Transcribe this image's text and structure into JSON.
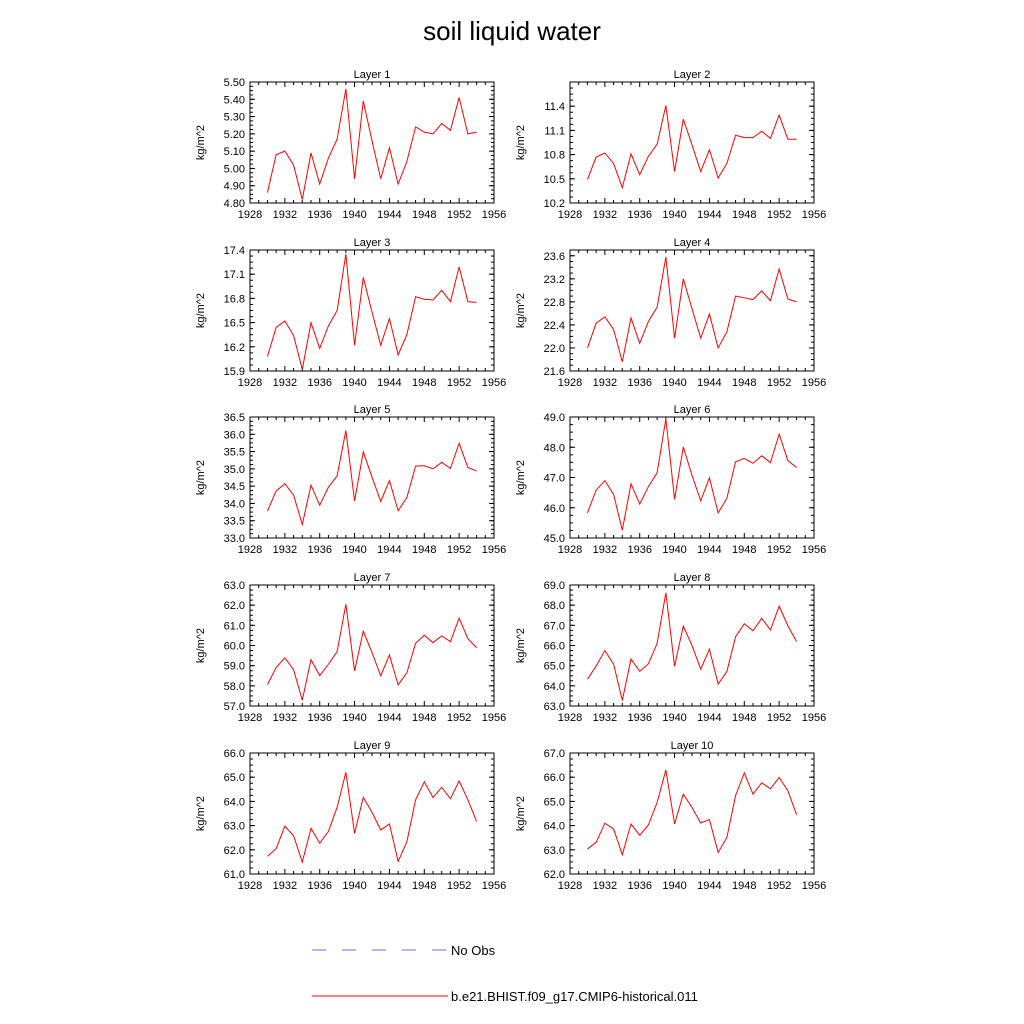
{
  "title": "soil liquid water",
  "colors": {
    "model": "#ff0000",
    "obs": "#6a6aff",
    "axis": "#000000"
  },
  "legend": {
    "obs_label": "No Obs",
    "model_label": "b.e21.BHIST.f09_g17.CMIP6-historical.011"
  },
  "chart_data": [
    {
      "type": "line",
      "title": "Layer 1",
      "ylabel": "kg/m^2",
      "xlim": [
        1928,
        1956
      ],
      "ylim": [
        4.8,
        5.5
      ],
      "xticks": [
        "1928",
        "1932",
        "1936",
        "1940",
        "1944",
        "1948",
        "1952",
        "1956"
      ],
      "yticks": [
        "4.80",
        "4.90",
        "5.00",
        "5.10",
        "5.20",
        "5.30",
        "5.40",
        "5.50"
      ],
      "x": [
        1930,
        1931,
        1932,
        1933,
        1934,
        1935,
        1936,
        1937,
        1938,
        1939,
        1940,
        1941,
        1942,
        1943,
        1944,
        1945,
        1946,
        1947,
        1948,
        1949,
        1950,
        1951,
        1952,
        1953,
        1954
      ],
      "series": [
        {
          "name": "b.e21.BHIST.f09_g17.CMIP6-historical.011",
          "values": [
            4.86,
            5.08,
            5.1,
            5.02,
            4.82,
            5.09,
            4.91,
            5.06,
            5.17,
            5.46,
            4.94,
            5.39,
            5.16,
            4.94,
            5.12,
            4.91,
            5.04,
            5.24,
            5.21,
            5.2,
            5.26,
            5.22,
            5.41,
            5.2,
            5.21
          ]
        }
      ]
    },
    {
      "type": "line",
      "title": "Layer 2",
      "ylabel": "kg/m^2",
      "xlim": [
        1928,
        1956
      ],
      "ylim": [
        10.2,
        11.7
      ],
      "xticks": [
        "1928",
        "1932",
        "1936",
        "1940",
        "1944",
        "1948",
        "1952",
        "1956"
      ],
      "yticks": [
        "10.2",
        "10.5",
        "10.8",
        "11.1",
        "11.4"
      ],
      "x": [
        1930,
        1931,
        1932,
        1933,
        1934,
        1935,
        1936,
        1937,
        1938,
        1939,
        1940,
        1941,
        1942,
        1943,
        1944,
        1945,
        1946,
        1947,
        1948,
        1949,
        1950,
        1951,
        1952,
        1953,
        1954
      ],
      "series": [
        {
          "name": "b.e21.BHIST.f09_g17.CMIP6-historical.011",
          "values": [
            10.49,
            10.77,
            10.82,
            10.69,
            10.39,
            10.81,
            10.55,
            10.78,
            10.93,
            11.41,
            10.59,
            11.24,
            10.92,
            10.59,
            10.86,
            10.51,
            10.69,
            11.04,
            11.01,
            11.01,
            11.09,
            11.0,
            11.29,
            10.99,
            10.99
          ]
        }
      ]
    },
    {
      "type": "line",
      "title": "Layer 3",
      "ylabel": "kg/m^2",
      "xlim": [
        1928,
        1956
      ],
      "ylim": [
        15.9,
        17.4
      ],
      "xticks": [
        "1928",
        "1932",
        "1936",
        "1940",
        "1944",
        "1948",
        "1952",
        "1956"
      ],
      "yticks": [
        "15.9",
        "16.2",
        "16.5",
        "16.8",
        "17.1",
        "17.4"
      ],
      "x": [
        1930,
        1931,
        1932,
        1933,
        1934,
        1935,
        1936,
        1937,
        1938,
        1939,
        1940,
        1941,
        1942,
        1943,
        1944,
        1945,
        1946,
        1947,
        1948,
        1949,
        1950,
        1951,
        1952,
        1953,
        1954
      ],
      "series": [
        {
          "name": "b.e21.BHIST.f09_g17.CMIP6-historical.011",
          "values": [
            16.08,
            16.44,
            16.52,
            16.34,
            15.92,
            16.5,
            16.18,
            16.46,
            16.65,
            17.35,
            16.22,
            17.06,
            16.63,
            16.22,
            16.55,
            16.1,
            16.35,
            16.82,
            16.79,
            16.78,
            16.9,
            16.76,
            17.19,
            16.76,
            16.75
          ]
        }
      ]
    },
    {
      "type": "line",
      "title": "Layer 4",
      "ylabel": "kg/m^2",
      "xlim": [
        1928,
        1956
      ],
      "ylim": [
        21.6,
        23.7
      ],
      "xticks": [
        "1928",
        "1932",
        "1936",
        "1940",
        "1944",
        "1948",
        "1952",
        "1956"
      ],
      "yticks": [
        "21.6",
        "22.0",
        "22.4",
        "22.8",
        "23.2",
        "23.6"
      ],
      "x": [
        1930,
        1931,
        1932,
        1933,
        1934,
        1935,
        1936,
        1937,
        1938,
        1939,
        1940,
        1941,
        1942,
        1943,
        1944,
        1945,
        1946,
        1947,
        1948,
        1949,
        1950,
        1951,
        1952,
        1953,
        1954
      ],
      "series": [
        {
          "name": "b.e21.BHIST.f09_g17.CMIP6-historical.011",
          "values": [
            22.0,
            22.43,
            22.54,
            22.32,
            21.76,
            22.52,
            22.08,
            22.46,
            22.71,
            23.58,
            22.17,
            23.2,
            22.68,
            22.17,
            22.59,
            22.0,
            22.28,
            22.9,
            22.87,
            22.84,
            22.99,
            22.82,
            23.37,
            22.85,
            22.8
          ]
        }
      ]
    },
    {
      "type": "line",
      "title": "Layer 5",
      "ylabel": "kg/m^2",
      "xlim": [
        1928,
        1956
      ],
      "ylim": [
        33.0,
        36.5
      ],
      "xticks": [
        "1928",
        "1932",
        "1936",
        "1940",
        "1944",
        "1948",
        "1952",
        "1956"
      ],
      "yticks": [
        "33.0",
        "33.5",
        "34.0",
        "34.5",
        "35.0",
        "35.5",
        "36.0",
        "36.5"
      ],
      "x": [
        1930,
        1931,
        1932,
        1933,
        1934,
        1935,
        1936,
        1937,
        1938,
        1939,
        1940,
        1941,
        1942,
        1943,
        1944,
        1945,
        1946,
        1947,
        1948,
        1949,
        1950,
        1951,
        1952,
        1953,
        1954
      ],
      "series": [
        {
          "name": "b.e21.BHIST.f09_g17.CMIP6-historical.011",
          "values": [
            33.78,
            34.36,
            34.57,
            34.24,
            33.39,
            34.53,
            33.95,
            34.47,
            34.8,
            36.11,
            34.07,
            35.49,
            34.76,
            34.06,
            34.66,
            33.79,
            34.17,
            35.08,
            35.09,
            35.0,
            35.19,
            35.01,
            35.74,
            35.04,
            34.94
          ]
        }
      ]
    },
    {
      "type": "line",
      "title": "Layer 6",
      "ylabel": "kg/m^2",
      "xlim": [
        1928,
        1956
      ],
      "ylim": [
        45.0,
        49.0
      ],
      "xticks": [
        "1928",
        "1932",
        "1936",
        "1940",
        "1944",
        "1948",
        "1952",
        "1956"
      ],
      "yticks": [
        "45.0",
        "46.0",
        "47.0",
        "48.0",
        "49.0"
      ],
      "x": [
        1930,
        1931,
        1932,
        1933,
        1934,
        1935,
        1936,
        1937,
        1938,
        1939,
        1940,
        1941,
        1942,
        1943,
        1944,
        1945,
        1946,
        1947,
        1948,
        1949,
        1950,
        1951,
        1952,
        1953,
        1954
      ],
      "series": [
        {
          "name": "b.e21.BHIST.f09_g17.CMIP6-historical.011",
          "values": [
            45.83,
            46.58,
            46.9,
            46.44,
            45.26,
            46.79,
            46.12,
            46.7,
            47.16,
            48.94,
            46.28,
            48.01,
            47.07,
            46.23,
            46.99,
            45.83,
            46.31,
            47.52,
            47.63,
            47.47,
            47.72,
            47.49,
            48.43,
            47.56,
            47.33
          ]
        }
      ]
    },
    {
      "type": "line",
      "title": "Layer 7",
      "ylabel": "kg/m^2",
      "xlim": [
        1928,
        1956
      ],
      "ylim": [
        57.0,
        63.0
      ],
      "xticks": [
        "1928",
        "1932",
        "1936",
        "1940",
        "1944",
        "1948",
        "1952",
        "1956"
      ],
      "yticks": [
        "57.0",
        "58.0",
        "59.0",
        "60.0",
        "61.0",
        "62.0",
        "63.0"
      ],
      "x": [
        1930,
        1931,
        1932,
        1933,
        1934,
        1935,
        1936,
        1937,
        1938,
        1939,
        1940,
        1941,
        1942,
        1943,
        1944,
        1945,
        1946,
        1947,
        1948,
        1949,
        1950,
        1951,
        1952,
        1953,
        1954
      ],
      "series": [
        {
          "name": "b.e21.BHIST.f09_g17.CMIP6-historical.011",
          "values": [
            58.06,
            58.91,
            59.39,
            58.8,
            57.29,
            59.3,
            58.51,
            59.07,
            59.7,
            62.04,
            58.74,
            60.71,
            59.65,
            58.5,
            59.53,
            58.05,
            58.65,
            60.11,
            60.51,
            60.14,
            60.48,
            60.19,
            61.36,
            60.34,
            59.89
          ]
        }
      ]
    },
    {
      "type": "line",
      "title": "Layer 8",
      "ylabel": "kg/m^2",
      "xlim": [
        1928,
        1956
      ],
      "ylim": [
        63.0,
        69.0
      ],
      "xticks": [
        "1928",
        "1932",
        "1936",
        "1940",
        "1944",
        "1948",
        "1952",
        "1956"
      ],
      "yticks": [
        "63.0",
        "64.0",
        "65.0",
        "66.0",
        "67.0",
        "68.0",
        "69.0"
      ],
      "x": [
        1930,
        1931,
        1932,
        1933,
        1934,
        1935,
        1936,
        1937,
        1938,
        1939,
        1940,
        1941,
        1942,
        1943,
        1944,
        1945,
        1946,
        1947,
        1948,
        1949,
        1950,
        1951,
        1952,
        1953,
        1954
      ],
      "series": [
        {
          "name": "b.e21.BHIST.f09_g17.CMIP6-historical.011",
          "values": [
            64.33,
            64.98,
            65.75,
            65.08,
            63.28,
            65.33,
            64.72,
            65.09,
            66.11,
            68.61,
            64.97,
            66.96,
            66.0,
            64.83,
            65.82,
            64.09,
            64.71,
            66.43,
            67.08,
            66.73,
            67.35,
            66.77,
            67.95,
            66.98,
            66.2
          ]
        }
      ]
    },
    {
      "type": "line",
      "title": "Layer 9",
      "ylabel": "kg/m^2",
      "xlim": [
        1928,
        1956
      ],
      "ylim": [
        61.0,
        66.0
      ],
      "xticks": [
        "1928",
        "1932",
        "1936",
        "1940",
        "1944",
        "1948",
        "1952",
        "1956"
      ],
      "yticks": [
        "61.0",
        "62.0",
        "63.0",
        "64.0",
        "65.0",
        "66.0"
      ],
      "x": [
        1930,
        1931,
        1932,
        1933,
        1934,
        1935,
        1936,
        1937,
        1938,
        1939,
        1940,
        1941,
        1942,
        1943,
        1944,
        1945,
        1946,
        1947,
        1948,
        1949,
        1950,
        1951,
        1952,
        1953,
        1954
      ],
      "series": [
        {
          "name": "b.e21.BHIST.f09_g17.CMIP6-historical.011",
          "values": [
            61.73,
            62.05,
            62.98,
            62.58,
            61.49,
            62.89,
            62.27,
            62.76,
            63.76,
            65.2,
            62.68,
            64.17,
            63.55,
            62.82,
            63.07,
            61.52,
            62.33,
            64.06,
            64.81,
            64.16,
            64.58,
            64.11,
            64.84,
            64.07,
            63.17
          ]
        }
      ]
    },
    {
      "type": "line",
      "title": "Layer 10",
      "ylabel": "kg/m^2",
      "xlim": [
        1928,
        1956
      ],
      "ylim": [
        62.0,
        67.0
      ],
      "xticks": [
        "1928",
        "1932",
        "1936",
        "1940",
        "1944",
        "1948",
        "1952",
        "1956"
      ],
      "yticks": [
        "62.0",
        "63.0",
        "64.0",
        "65.0",
        "66.0",
        "67.0"
      ],
      "x": [
        1930,
        1931,
        1932,
        1933,
        1934,
        1935,
        1936,
        1937,
        1938,
        1939,
        1940,
        1941,
        1942,
        1943,
        1944,
        1945,
        1946,
        1947,
        1948,
        1949,
        1950,
        1951,
        1952,
        1953,
        1954
      ],
      "series": [
        {
          "name": "b.e21.BHIST.f09_g17.CMIP6-historical.011",
          "values": [
            63.03,
            63.31,
            64.1,
            63.86,
            62.8,
            64.07,
            63.6,
            64.03,
            64.96,
            66.3,
            64.07,
            65.3,
            64.75,
            64.11,
            64.25,
            62.89,
            63.51,
            65.24,
            66.18,
            65.3,
            65.77,
            65.52,
            65.99,
            65.44,
            64.45
          ]
        }
      ]
    }
  ]
}
